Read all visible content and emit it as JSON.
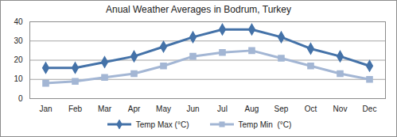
{
  "chart_data": {
    "type": "line",
    "title": "Anual Weather Averages in Bodrum, Turkey",
    "categories": [
      "Jan",
      "Feb",
      "Mar",
      "Apr",
      "May",
      "Jun",
      "Jul",
      "Aug",
      "Sep",
      "Oct",
      "Nov",
      "Dec"
    ],
    "series": [
      {
        "name": "Temp Max (°C)",
        "color": "#4472a8",
        "marker": "diamond",
        "line_style": "solid",
        "values": [
          16,
          16,
          19,
          22,
          27,
          32,
          36,
          36,
          32,
          26,
          22,
          17
        ]
      },
      {
        "name": "Temp Min  (°C)",
        "color": "#a3b6d4",
        "marker": "square",
        "line_style": "solid",
        "values": [
          8,
          9,
          11,
          13,
          17,
          22,
          24,
          25,
          21,
          17,
          13,
          10
        ]
      }
    ],
    "ylim": [
      0,
      40
    ],
    "yticks": [
      0,
      10,
      20,
      30,
      40
    ],
    "grid": true,
    "legend": "bottom"
  }
}
